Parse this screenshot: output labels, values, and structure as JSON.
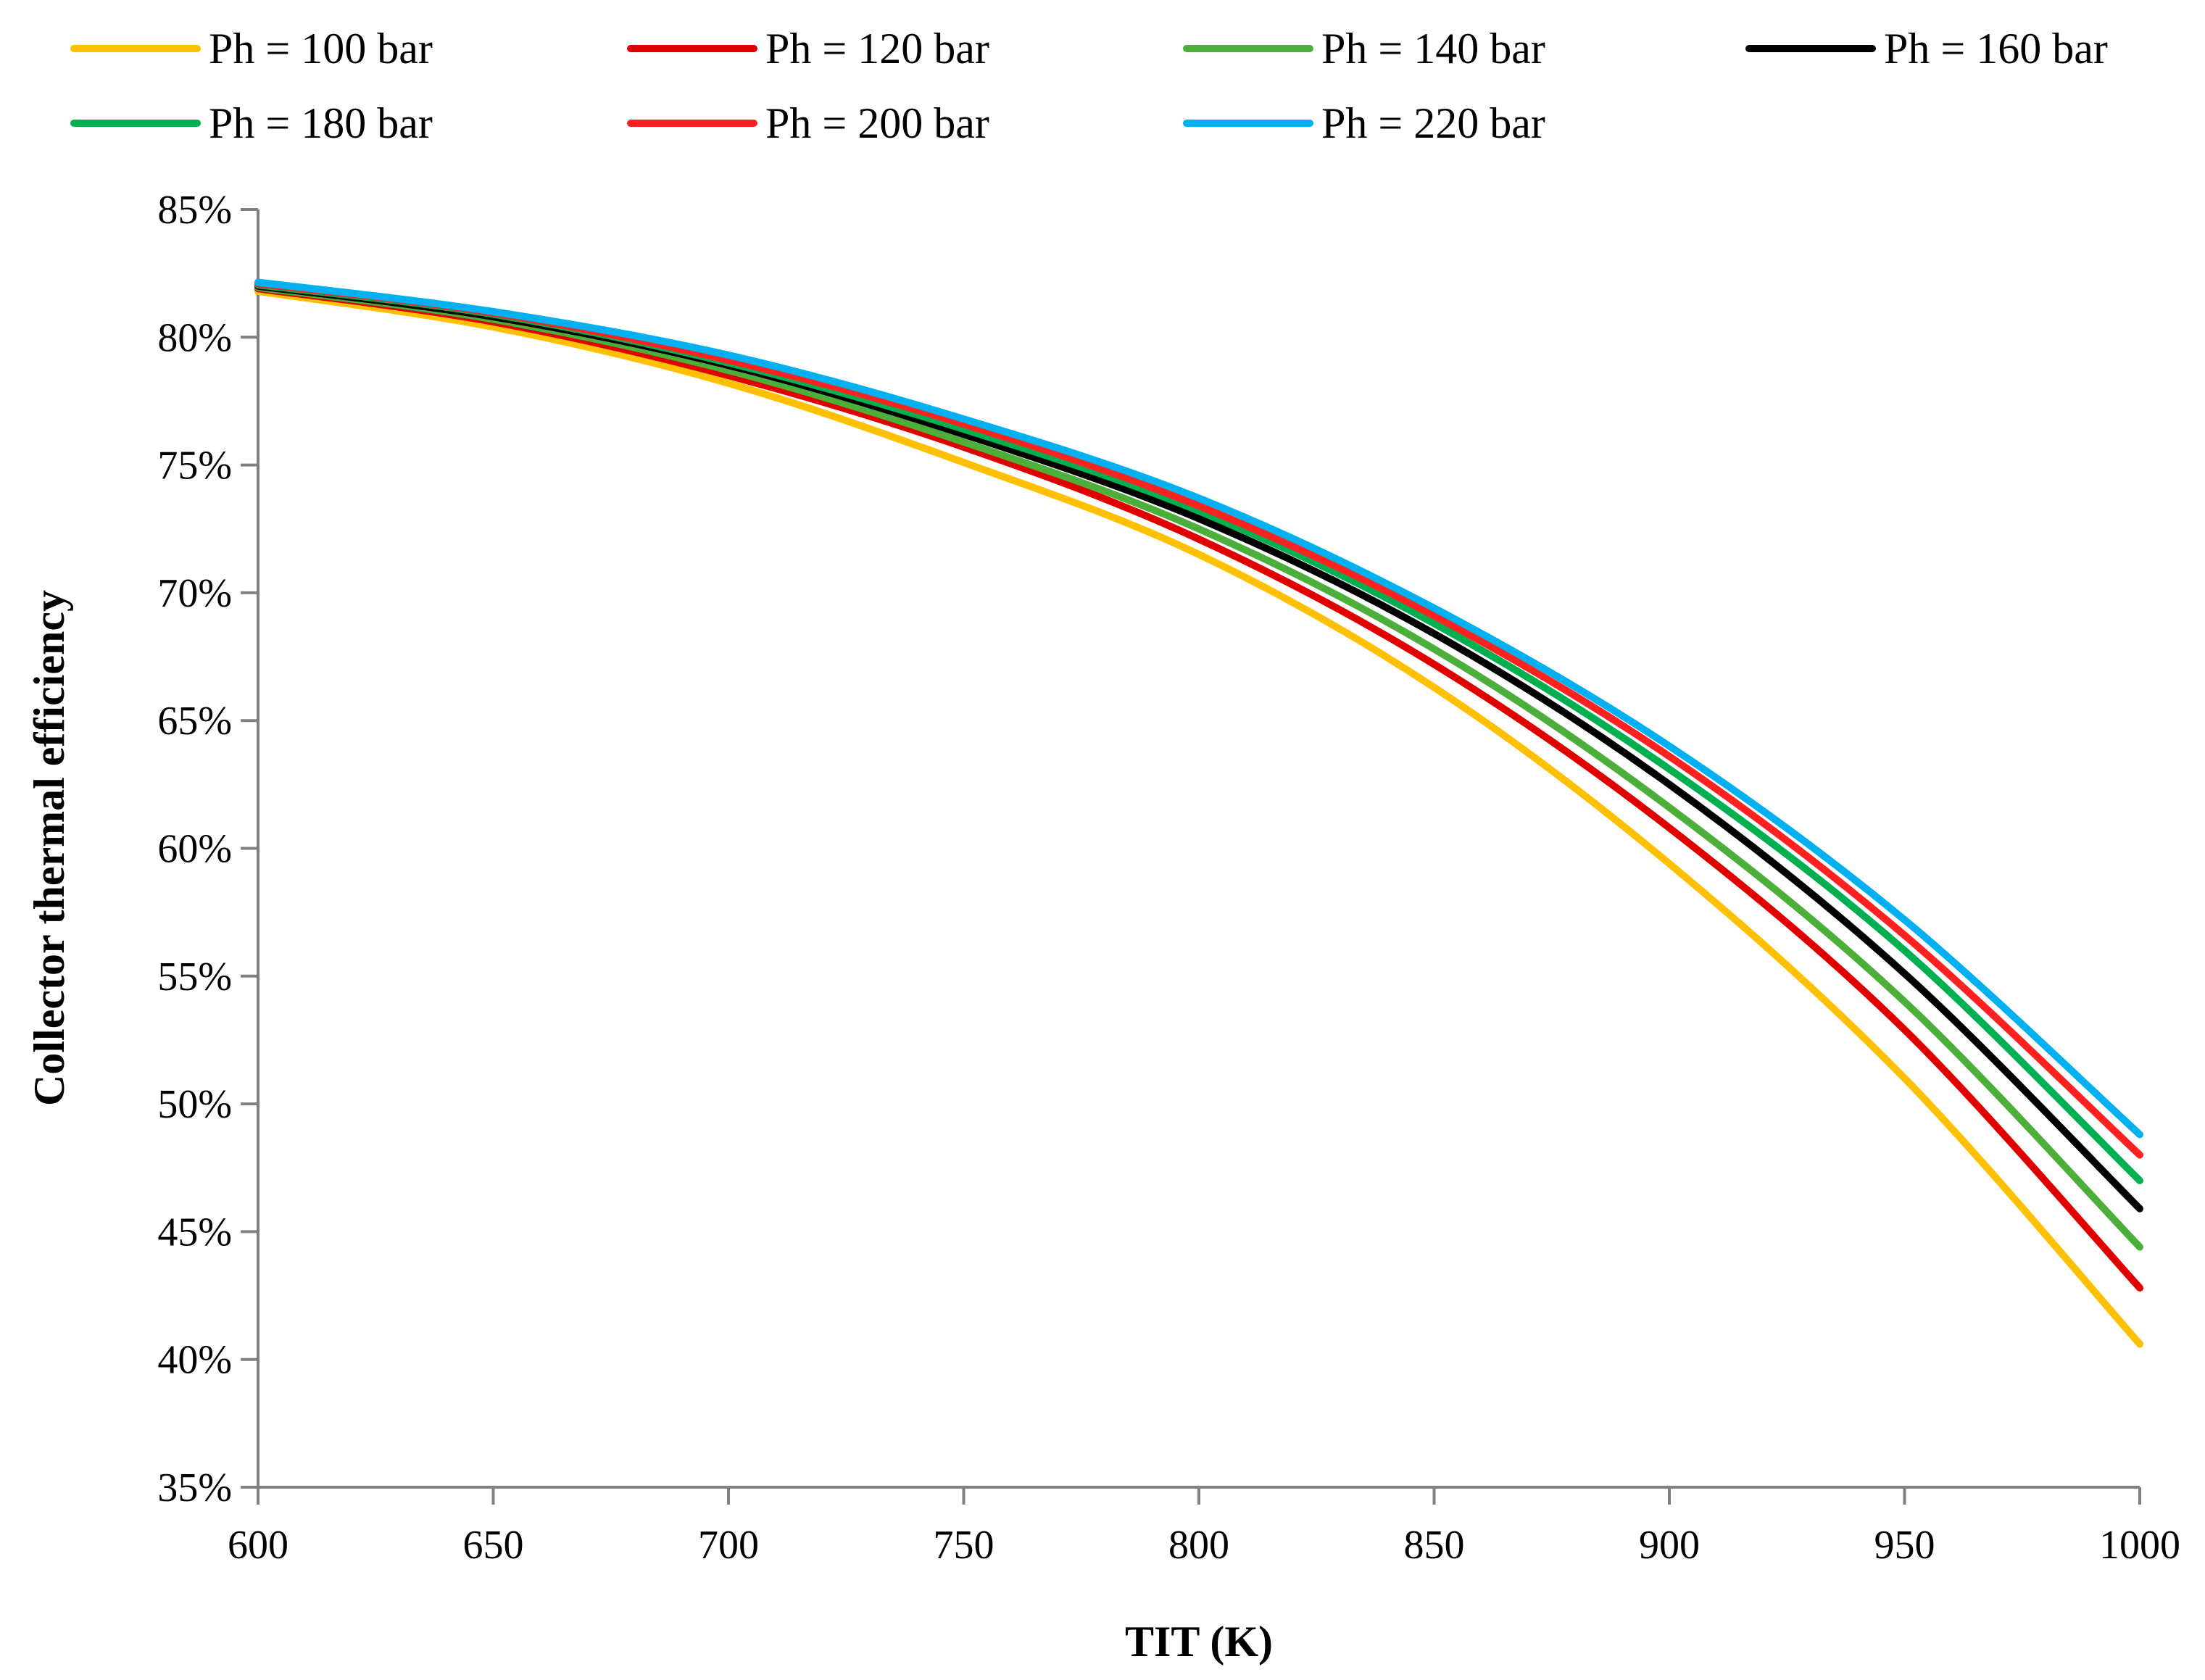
{
  "chart_data": {
    "type": "line",
    "title": "",
    "xlabel": "TIT (K)",
    "ylabel": "Collector thermal efficiency",
    "xlim": [
      600,
      1000
    ],
    "ylim": [
      35,
      85
    ],
    "x_ticks": [
      "600",
      "650",
      "700",
      "750",
      "800",
      "850",
      "900",
      "950",
      "1000"
    ],
    "y_ticks": [
      "35%",
      "40%",
      "45%",
      "50%",
      "55%",
      "60%",
      "65%",
      "70%",
      "75%",
      "80%",
      "85%"
    ],
    "grid": false,
    "legend_position": "top",
    "x": [
      600,
      650,
      700,
      750,
      800,
      850,
      900,
      950,
      1000
    ],
    "series": [
      {
        "name": "Ph = 100 bar",
        "color": "#FFC000",
        "values": [
          81.8,
          80.4,
          78.2,
          75.1,
          71.5,
          66.3,
          59.4,
          51.0,
          40.6
        ]
      },
      {
        "name": "Ph = 120 bar",
        "color": "#E00000",
        "values": [
          81.9,
          80.6,
          78.5,
          75.7,
          72.1,
          67.2,
          60.8,
          52.9,
          42.8
        ]
      },
      {
        "name": "Ph = 140 bar",
        "color": "#4CAF3A",
        "values": [
          81.95,
          80.7,
          78.7,
          75.9,
          72.5,
          67.8,
          61.6,
          54.0,
          44.4
        ]
      },
      {
        "name": "Ph = 160 bar",
        "color": "#000000",
        "values": [
          82.0,
          80.8,
          78.9,
          76.2,
          72.9,
          68.4,
          62.5,
          55.1,
          45.9
        ]
      },
      {
        "name": "Ph = 180 bar",
        "color": "#00B050",
        "values": [
          82.05,
          80.9,
          79.0,
          76.4,
          73.2,
          68.8,
          63.1,
          56.0,
          47.0
        ]
      },
      {
        "name": "Ph = 200 bar",
        "color": "#FF2020",
        "values": [
          82.1,
          80.95,
          79.1,
          76.6,
          73.4,
          69.1,
          63.6,
          56.6,
          48.0
        ]
      },
      {
        "name": "Ph = 220 bar",
        "color": "#00B0F0",
        "values": [
          82.15,
          81.0,
          79.3,
          76.8,
          73.7,
          69.4,
          64.0,
          57.2,
          48.8
        ]
      }
    ]
  }
}
